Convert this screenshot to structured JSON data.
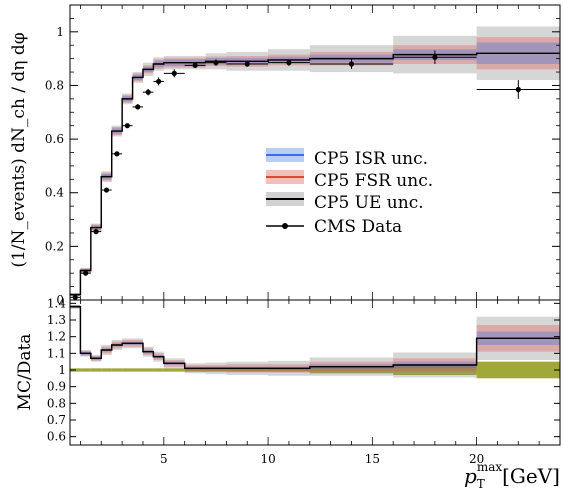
{
  "chart_data": [
    {
      "panel": "main",
      "type": "line",
      "ylabel": "(1/N_events) dN_ch / dη dφ",
      "ylim": [
        0,
        1.1
      ],
      "xlim": [
        0.5,
        24
      ],
      "y_ticks": [
        "0",
        "0.2",
        "0.4",
        "0.6",
        "0.8",
        "1"
      ],
      "grid": false,
      "legend_position": "center-right",
      "legend": [
        {
          "label": "CP5 ISR unc.",
          "color": "#3b6fe0"
        },
        {
          "label": "CP5 FSR unc.",
          "color": "#e0453b"
        },
        {
          "label": "CP5 UE unc.",
          "color": "#000000"
        },
        {
          "label": "CMS Data",
          "color": "#000000"
        }
      ],
      "bin_edges": [
        0.5,
        1.0,
        1.5,
        2.0,
        2.5,
        3.0,
        3.5,
        4.0,
        4.5,
        5.0,
        6.0,
        7.0,
        8.0,
        10.0,
        12.0,
        16.0,
        20.0,
        24.0
      ],
      "series": [
        {
          "name": "CP5 ISR unc.",
          "values": [
            0.02,
            0.11,
            0.27,
            0.46,
            0.63,
            0.75,
            0.83,
            0.86,
            0.88,
            0.885,
            0.885,
            0.89,
            0.89,
            0.895,
            0.9,
            0.915,
            0.92
          ],
          "band_half_width": [
            0.005,
            0.006,
            0.008,
            0.01,
            0.01,
            0.01,
            0.01,
            0.01,
            0.012,
            0.012,
            0.012,
            0.012,
            0.012,
            0.012,
            0.015,
            0.02,
            0.04
          ],
          "color": "#3b6fe0"
        },
        {
          "name": "CP5 FSR unc.",
          "values": [
            0.02,
            0.11,
            0.27,
            0.46,
            0.63,
            0.75,
            0.83,
            0.86,
            0.88,
            0.885,
            0.885,
            0.89,
            0.89,
            0.895,
            0.9,
            0.915,
            0.92
          ],
          "band_half_width": [
            0.005,
            0.008,
            0.012,
            0.015,
            0.015,
            0.015,
            0.015,
            0.015,
            0.018,
            0.018,
            0.018,
            0.018,
            0.02,
            0.02,
            0.025,
            0.035,
            0.06
          ],
          "color": "#e0453b"
        },
        {
          "name": "CP5 UE unc.",
          "values": [
            0.02,
            0.11,
            0.27,
            0.46,
            0.63,
            0.75,
            0.83,
            0.86,
            0.88,
            0.885,
            0.885,
            0.89,
            0.89,
            0.895,
            0.9,
            0.915,
            0.92
          ],
          "band_half_width": [
            0.005,
            0.01,
            0.015,
            0.02,
            0.02,
            0.02,
            0.02,
            0.025,
            0.025,
            0.025,
            0.025,
            0.03,
            0.035,
            0.04,
            0.05,
            0.07,
            0.1
          ],
          "color": "#000000"
        }
      ],
      "data_points": {
        "name": "CMS Data",
        "x": [
          0.75,
          1.25,
          1.75,
          2.25,
          2.75,
          3.25,
          3.75,
          4.25,
          4.75,
          5.5,
          6.5,
          7.5,
          9.0,
          11.0,
          14.0,
          18.0,
          22.0
        ],
        "xerr": [
          0.25,
          0.25,
          0.25,
          0.25,
          0.25,
          0.25,
          0.25,
          0.25,
          0.25,
          0.5,
          0.5,
          0.5,
          1.0,
          1.0,
          2.0,
          2.0,
          2.0
        ],
        "y": [
          0.01,
          0.1,
          0.255,
          0.41,
          0.545,
          0.65,
          0.72,
          0.775,
          0.815,
          0.845,
          0.875,
          0.885,
          0.88,
          0.885,
          0.88,
          0.905,
          0.785
        ],
        "yerr": [
          0.003,
          0.004,
          0.006,
          0.008,
          0.008,
          0.008,
          0.01,
          0.012,
          0.015,
          0.015,
          0.01,
          0.012,
          0.01,
          0.012,
          0.018,
          0.025,
          0.035
        ]
      }
    },
    {
      "panel": "ratio",
      "type": "line",
      "ylabel": "MC/Data",
      "xlabel_main": "p",
      "xlabel_sub": "T",
      "xlabel_sup": "max",
      "xlabel_unit": "[GeV]",
      "ylim": [
        0.55,
        1.42
      ],
      "xlim": [
        0.5,
        24
      ],
      "x_ticks": [
        5,
        10,
        15,
        20
      ],
      "y_ticks": [
        "0.6",
        "0.7",
        "0.8",
        "0.9",
        "1",
        "1.1",
        "1.2",
        "1.3",
        "1.4"
      ],
      "grid": false,
      "bin_edges": [
        0.5,
        1.0,
        1.5,
        2.0,
        2.5,
        3.0,
        3.5,
        4.0,
        4.5,
        5.0,
        6.0,
        7.0,
        8.0,
        10.0,
        12.0,
        16.0,
        20.0,
        24.0
      ],
      "series": [
        {
          "name": "CP5 ISR unc.",
          "values": [
            1.38,
            1.1,
            1.07,
            1.12,
            1.15,
            1.16,
            1.16,
            1.11,
            1.08,
            1.04,
            1.01,
            1.01,
            1.01,
            1.01,
            1.02,
            1.03,
            1.19
          ],
          "band_half_width": [
            0.01,
            0.01,
            0.01,
            0.01,
            0.01,
            0.01,
            0.01,
            0.01,
            0.01,
            0.01,
            0.01,
            0.01,
            0.01,
            0.01,
            0.015,
            0.02,
            0.04
          ],
          "color": "#3b6fe0"
        },
        {
          "name": "CP5 FSR unc.",
          "values": [
            1.38,
            1.1,
            1.07,
            1.12,
            1.15,
            1.16,
            1.16,
            1.11,
            1.08,
            1.04,
            1.01,
            1.01,
            1.01,
            1.01,
            1.02,
            1.03,
            1.19
          ],
          "band_half_width": [
            0.01,
            0.015,
            0.015,
            0.02,
            0.02,
            0.02,
            0.02,
            0.02,
            0.02,
            0.02,
            0.02,
            0.02,
            0.025,
            0.025,
            0.03,
            0.04,
            0.08
          ],
          "color": "#e0453b"
        },
        {
          "name": "CP5 UE unc.",
          "values": [
            1.38,
            1.1,
            1.07,
            1.12,
            1.15,
            1.16,
            1.16,
            1.11,
            1.08,
            1.04,
            1.01,
            1.01,
            1.01,
            1.01,
            1.02,
            1.03,
            1.19
          ],
          "band_half_width": [
            0.01,
            0.02,
            0.02,
            0.03,
            0.03,
            0.03,
            0.03,
            0.03,
            0.03,
            0.03,
            0.03,
            0.035,
            0.04,
            0.045,
            0.055,
            0.075,
            0.13
          ],
          "color": "#000000"
        }
      ],
      "data_band": {
        "color": "#8f9a14",
        "half_width": [
          0.01,
          0.01,
          0.01,
          0.01,
          0.01,
          0.01,
          0.01,
          0.01,
          0.01,
          0.01,
          0.01,
          0.01,
          0.01,
          0.01,
          0.02,
          0.03,
          0.05
        ]
      }
    }
  ]
}
